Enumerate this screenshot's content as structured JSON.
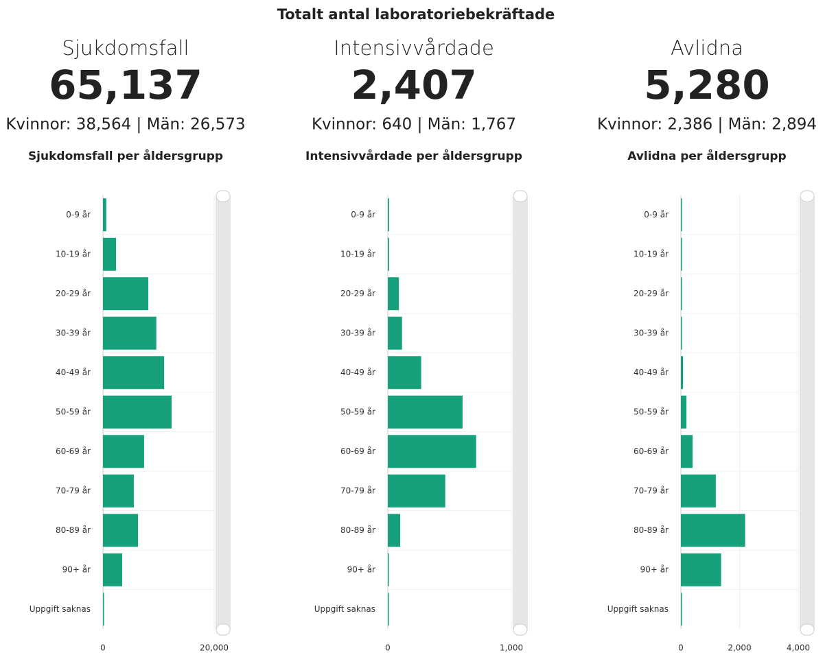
{
  "title": "Totalt antal laboratoriebekräftade",
  "panels": [
    {
      "heading": "Sjukdomsfall",
      "total": "65,137",
      "breakdown": "Kvinnor: 38,564 | Män: 26,573"
    },
    {
      "heading": "Intensivvårdade",
      "total": "2,407",
      "breakdown": "Kvinnor: 640 | Män: 1,767"
    },
    {
      "heading": "Avlidna",
      "total": "5,280",
      "breakdown": "Kvinnor: 2,386 | Män: 2,894"
    }
  ],
  "chart_data": [
    {
      "type": "bar",
      "orientation": "horizontal",
      "title": "Sjukdomsfall per åldersgrupp",
      "categories": [
        "0-9 år",
        "10-19 år",
        "20-29 år",
        "30-39 år",
        "40-49 år",
        "50-59 år",
        "60-69 år",
        "70-79 år",
        "80-89 år",
        "90+ år",
        "Uppgift saknas"
      ],
      "values": [
        600,
        2350,
        8150,
        9600,
        11000,
        12350,
        7400,
        5550,
        6300,
        3450,
        100
      ],
      "color": "#16a07b",
      "xlim": [
        0,
        20000
      ],
      "xticks": [
        0,
        {
          "value": 20000,
          "label": "20,000"
        }
      ],
      "grid": true
    },
    {
      "type": "bar",
      "orientation": "horizontal",
      "title": "Intensivvårdade per åldersgrupp",
      "categories": [
        "0-9 år",
        "10-19 år",
        "20-29 år",
        "30-39 år",
        "40-49 år",
        "50-59 år",
        "60-69 år",
        "70-79 år",
        "80-89 år",
        "90+ år",
        "Uppgift saknas"
      ],
      "values": [
        10,
        10,
        90,
        115,
        270,
        605,
        715,
        465,
        100,
        5,
        5
      ],
      "color": "#16a07b",
      "xlim": [
        0,
        1000
      ],
      "xticks": [
        0,
        {
          "value": 1000,
          "label": "1,000"
        }
      ],
      "grid": true
    },
    {
      "type": "bar",
      "orientation": "horizontal",
      "title": "Avlidna per åldersgrupp",
      "categories": [
        "0-9 år",
        "10-19 år",
        "20-29 år",
        "30-39 år",
        "40-49 år",
        "50-59 år",
        "60-69 år",
        "70-79 år",
        "80-89 år",
        "90+ år",
        "Uppgift saknas"
      ],
      "values": [
        1,
        1,
        15,
        20,
        70,
        190,
        400,
        1190,
        2190,
        1370,
        0
      ],
      "color": "#16a07b",
      "xlim": [
        0,
        4000
      ],
      "xticks": [
        0,
        {
          "value": 2000,
          "label": "2,000"
        },
        {
          "value": 4000,
          "label": "4,000"
        }
      ],
      "grid": true
    }
  ]
}
